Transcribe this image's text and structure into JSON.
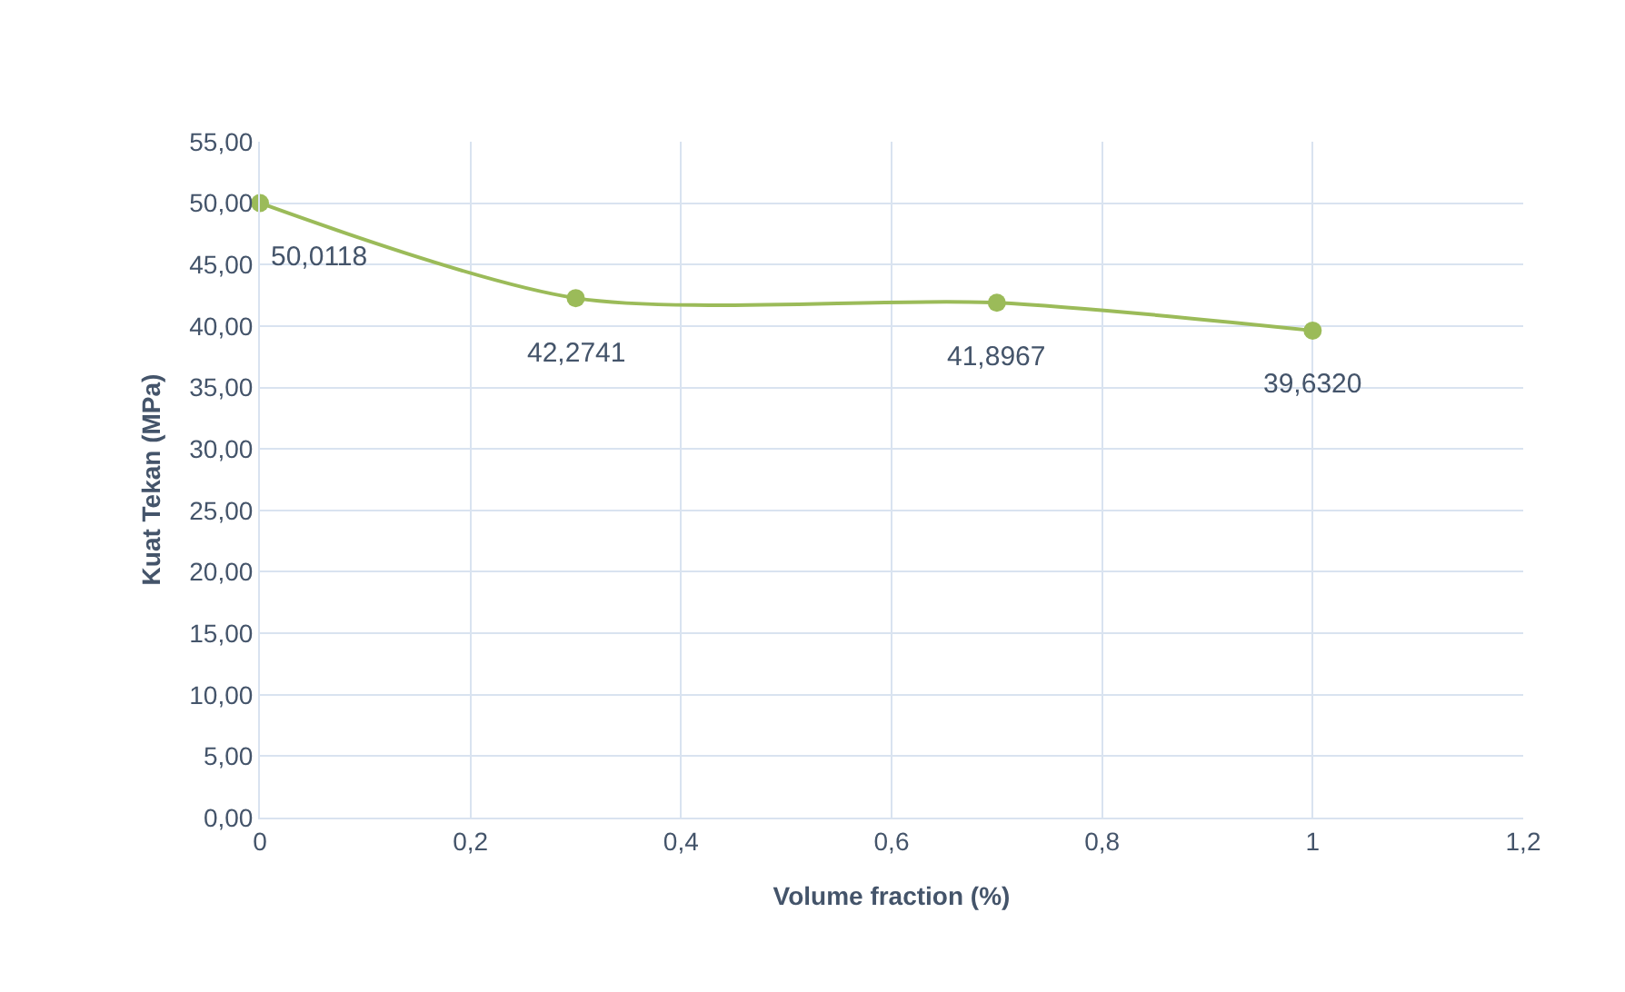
{
  "chart_data": {
    "type": "line",
    "xlabel": "Volume fraction (%)",
    "ylabel": "Kuat Tekan (MPa)",
    "x": [
      0,
      0.3,
      0.7,
      1
    ],
    "series": [
      {
        "color": "#9bbb59",
        "values": [
          50.0118,
          42.2741,
          41.8967,
          39.632
        ],
        "value_labels": [
          "50,0118",
          "42,2741",
          "41,8967",
          "39,6320"
        ]
      }
    ],
    "xlim": [
      0,
      1.2
    ],
    "xticks": [
      0,
      {
        "value": 0.2,
        "label": "0,2"
      },
      {
        "value": 0.4,
        "label": "0,4"
      },
      {
        "value": 0.6,
        "label": "0,6"
      },
      {
        "value": 0.8,
        "label": "0,8"
      },
      1,
      {
        "value": 1.2,
        "label": "1,2"
      }
    ],
    "ylim": [
      0,
      55
    ],
    "yticks": [
      {
        "value": 0,
        "label": "0,00"
      },
      {
        "value": 5,
        "label": "5,00"
      },
      {
        "value": 10,
        "label": "10,00"
      },
      {
        "value": 15,
        "label": "15,00"
      },
      {
        "value": 20,
        "label": "20,00"
      },
      {
        "value": 25,
        "label": "25,00"
      },
      {
        "value": 30,
        "label": "30,00"
      },
      {
        "value": 35,
        "label": "35,00"
      },
      {
        "value": 40,
        "label": "40,00"
      },
      {
        "value": 45,
        "label": "45,00"
      },
      {
        "value": 50,
        "label": "50,00"
      },
      {
        "value": 55,
        "label": "55,00"
      }
    ],
    "grid": true,
    "marker": "circle",
    "line_style": "solid"
  }
}
